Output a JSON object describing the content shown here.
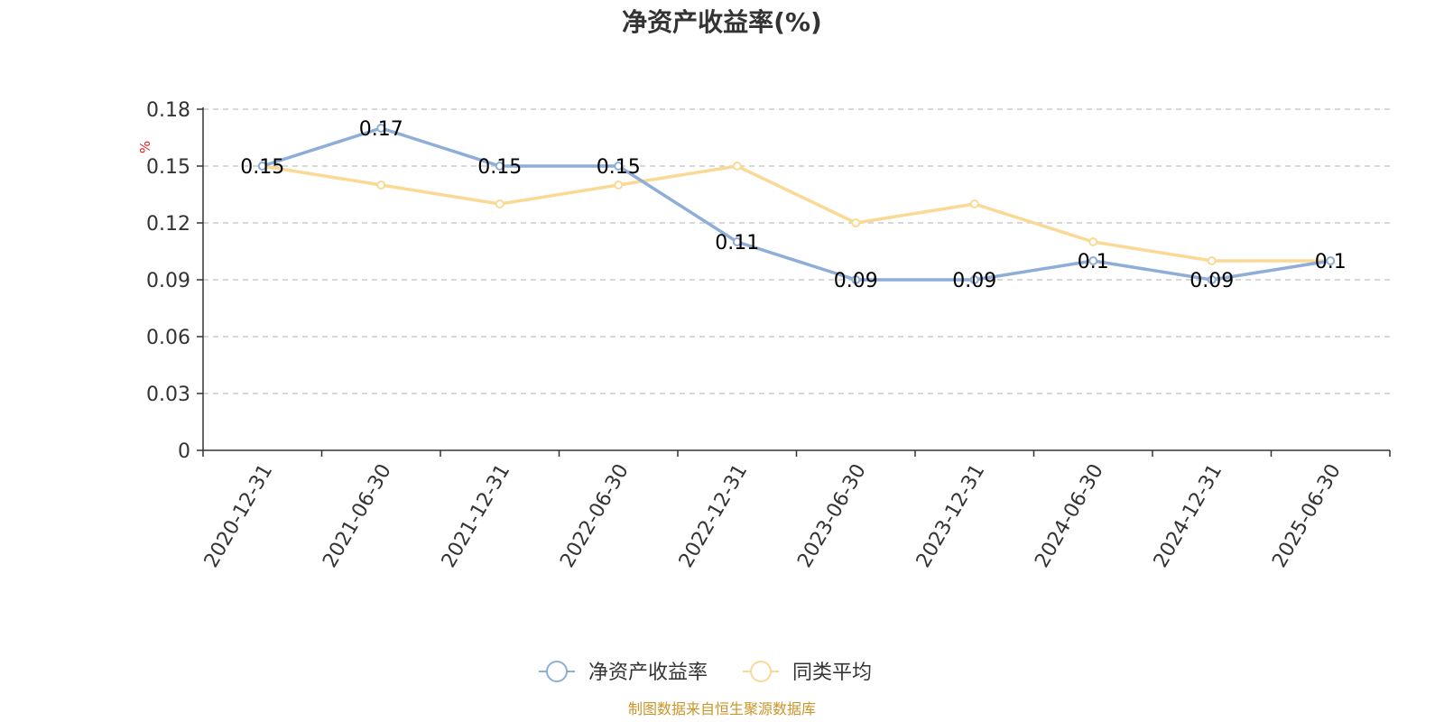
{
  "chart_data": {
    "type": "line",
    "title": "净资产收益率(%)",
    "ylabel": "%",
    "xlabel": "",
    "categories": [
      "2020-12-31",
      "2021-06-30",
      "2021-12-31",
      "2022-06-30",
      "2022-12-31",
      "2023-06-30",
      "2023-12-31",
      "2024-06-30",
      "2024-12-31",
      "2025-06-30"
    ],
    "ylim": [
      0,
      0.18
    ],
    "yticks": [
      "0",
      "0.03",
      "0.06",
      "0.09",
      "0.12",
      "0.15",
      "0.18"
    ],
    "grid": true,
    "legend_position": "bottom-center",
    "series": [
      {
        "name": "净资产收益率",
        "color": "#8eadd8",
        "values": [
          0.15,
          0.17,
          0.15,
          0.15,
          0.11,
          0.09,
          0.09,
          0.1,
          0.09,
          0.1
        ],
        "labels": [
          "0.15",
          "0.17",
          "0.15",
          "0.15",
          "0.11",
          "0.09",
          "0.09",
          "0.1",
          "0.09",
          "0.1"
        ]
      },
      {
        "name": "同类平均",
        "color": "#fad995",
        "values": [
          0.15,
          0.14,
          0.13,
          0.14,
          0.15,
          0.12,
          0.13,
          0.11,
          0.1,
          0.1
        ]
      }
    ],
    "source": "制图数据来自恒生聚源数据库"
  }
}
